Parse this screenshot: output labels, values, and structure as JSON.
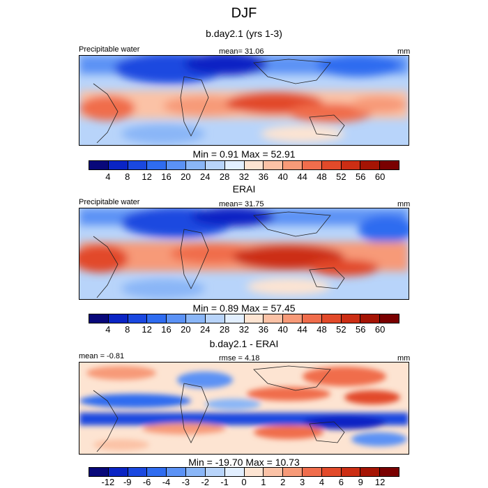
{
  "figure": {
    "title": "DJF"
  },
  "chart_data": [
    {
      "type": "heatmap",
      "title": "b.day2.1 (yrs 1-3)",
      "left_label": "Precipitable water",
      "center_label": "mean=  31.06",
      "right_label": "mm",
      "min_max_label": "Min =   0.91 Max =  52.91",
      "stats": {
        "mean": 31.06,
        "min": 0.91,
        "max": 52.91
      },
      "colorbar": {
        "levels": [
          4,
          8,
          12,
          16,
          20,
          24,
          28,
          32,
          36,
          40,
          44,
          48,
          52,
          56,
          60
        ],
        "tick_labels": [
          "4",
          "8",
          "12",
          "16",
          "20",
          "24",
          "28",
          "32",
          "36",
          "40",
          "44",
          "48",
          "52",
          "56",
          "60"
        ],
        "colors": [
          "#08087a",
          "#0a24c4",
          "#1a48e0",
          "#2f6cf0",
          "#5b92f5",
          "#8ab6f7",
          "#b8d4fa",
          "#e2efff",
          "#fde4d2",
          "#fbc2a6",
          "#f79a78",
          "#f06d4c",
          "#e24a2a",
          "#cc2e14",
          "#a51404",
          "#7a0000"
        ]
      }
    },
    {
      "type": "heatmap",
      "title": "ERAI",
      "left_label": "Precipitable water",
      "center_label": "mean=  31.75",
      "right_label": "mm",
      "min_max_label": "Min =   0.89 Max =  57.45",
      "stats": {
        "mean": 31.75,
        "min": 0.89,
        "max": 57.45
      },
      "colorbar": {
        "levels": [
          4,
          8,
          12,
          16,
          20,
          24,
          28,
          32,
          36,
          40,
          44,
          48,
          52,
          56,
          60
        ],
        "tick_labels": [
          "4",
          "8",
          "12",
          "16",
          "20",
          "24",
          "28",
          "32",
          "36",
          "40",
          "44",
          "48",
          "52",
          "56",
          "60"
        ],
        "colors": [
          "#08087a",
          "#0a24c4",
          "#1a48e0",
          "#2f6cf0",
          "#5b92f5",
          "#8ab6f7",
          "#b8d4fa",
          "#e2efff",
          "#fde4d2",
          "#fbc2a6",
          "#f79a78",
          "#f06d4c",
          "#e24a2a",
          "#cc2e14",
          "#a51404",
          "#7a0000"
        ]
      }
    },
    {
      "type": "heatmap",
      "title": "b.day2.1 - ERAI",
      "left_label": "mean =  -0.81",
      "center_label": "rmse =   4.18",
      "right_label": "mm",
      "min_max_label": "Min = -19.70 Max =  10.73",
      "stats": {
        "mean": -0.81,
        "rmse": 4.18,
        "min": -19.7,
        "max": 10.73
      },
      "colorbar": {
        "levels": [
          -12,
          -9,
          -6,
          -4,
          -3,
          -2,
          -1,
          0,
          1,
          2,
          3,
          4,
          6,
          9,
          12
        ],
        "tick_labels": [
          "-12",
          "-9",
          "-6",
          "-4",
          "-3",
          "-2",
          "-1",
          "0",
          "1",
          "2",
          "3",
          "4",
          "6",
          "9",
          "12"
        ],
        "colors": [
          "#08087a",
          "#0a24c4",
          "#1a48e0",
          "#2f6cf0",
          "#5b92f5",
          "#8ab6f7",
          "#b8d4fa",
          "#e2efff",
          "#fde4d2",
          "#fbc2a6",
          "#f79a78",
          "#f06d4c",
          "#e24a2a",
          "#cc2e14",
          "#a51404",
          "#7a0000"
        ]
      }
    }
  ]
}
